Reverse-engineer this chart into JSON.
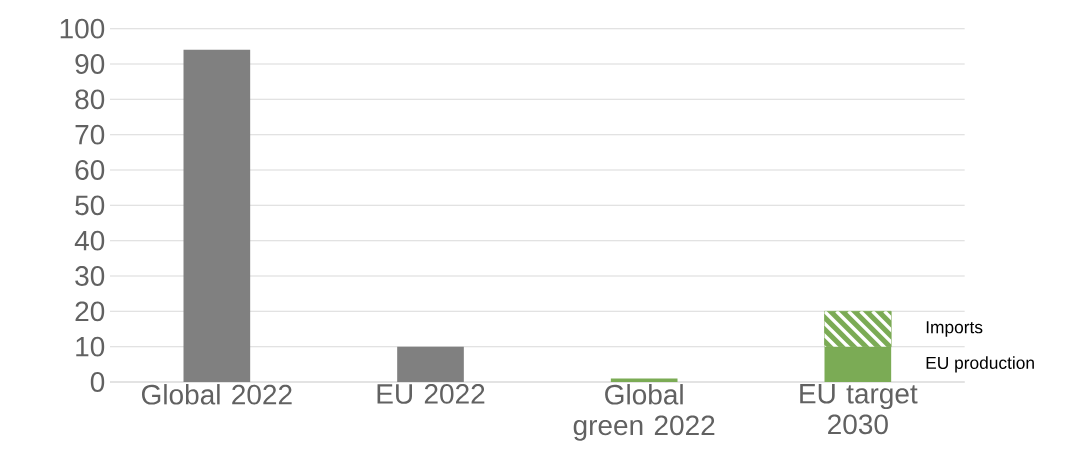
{
  "chart_data": {
    "type": "bar",
    "stacked": true,
    "categories": [
      "Global 2022",
      "EU 2022",
      "Global green 2022",
      "EU target 2030"
    ],
    "series": [
      {
        "name": "EU production",
        "colors": [
          "#808080",
          "#808080",
          "#7bab55",
          "#7bab55"
        ],
        "values": [
          94,
          10,
          1,
          10
        ]
      },
      {
        "name": "Imports",
        "color": "#7bab55",
        "values": [
          null,
          null,
          null,
          10
        ]
      }
    ],
    "ylim": [
      0,
      100
    ],
    "yticks": [
      0,
      10,
      20,
      30,
      40,
      50,
      60,
      70,
      80,
      90,
      100
    ],
    "grid": "y",
    "legend": "right"
  }
}
